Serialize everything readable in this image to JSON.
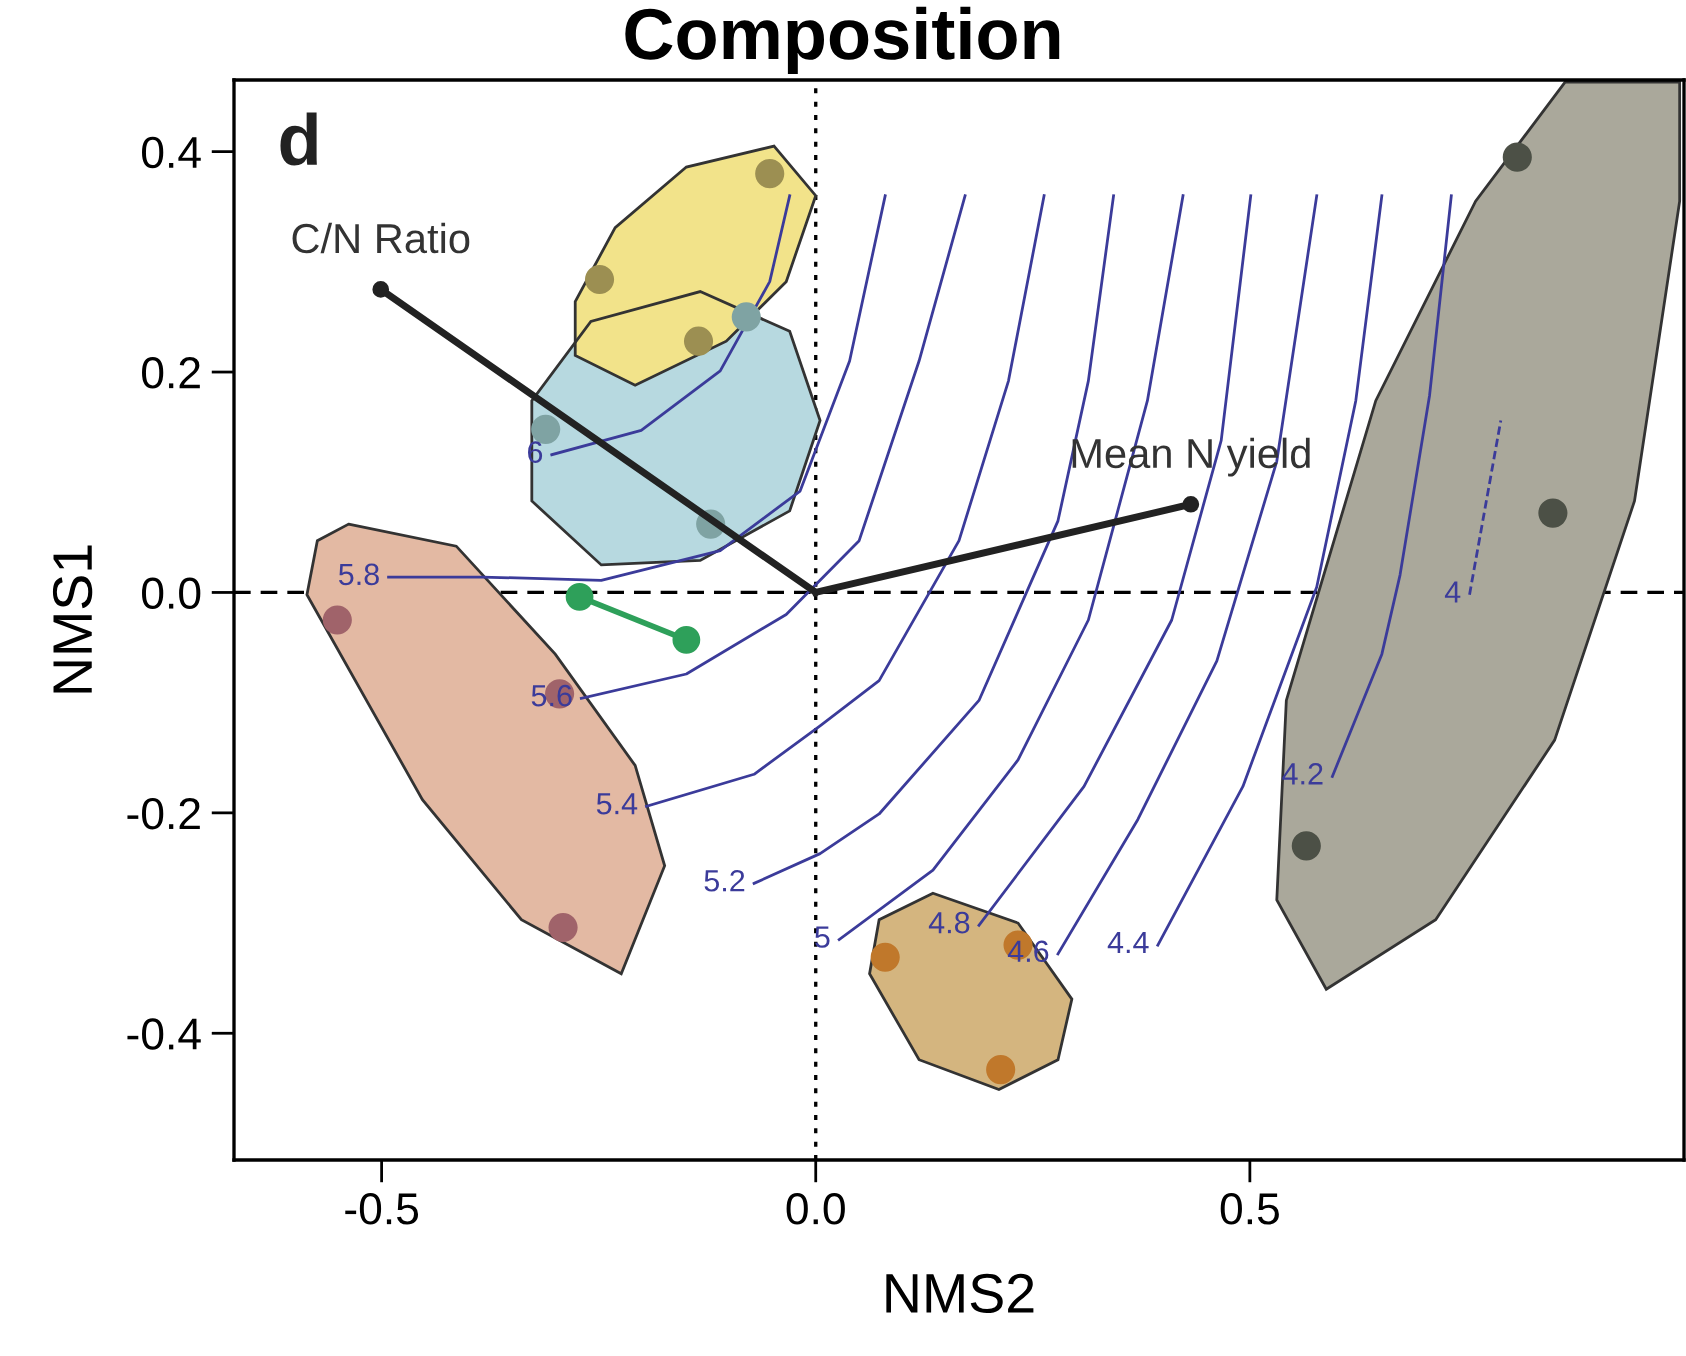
{
  "chart_data": {
    "type": "scatter",
    "title": "Composition",
    "xlabel": "NMS2",
    "ylabel": "NMS1",
    "xlim": [
      -0.67,
      1.0
    ],
    "ylim": [
      -0.515,
      0.465
    ],
    "xticks": [
      {
        "value": -0.5,
        "label": "-0.5"
      },
      {
        "value": 0.0,
        "label": "0.0"
      },
      {
        "value": 0.5,
        "label": "0.5"
      }
    ],
    "yticks": [
      {
        "value": -0.4,
        "label": "-0.4"
      },
      {
        "value": -0.2,
        "label": "-0.2"
      },
      {
        "value": 0.0,
        "label": "0.0"
      },
      {
        "value": 0.2,
        "label": "0.2"
      },
      {
        "value": 0.4,
        "label": "0.4"
      }
    ],
    "grid": false,
    "ref_lines": [
      {
        "axis": "x",
        "value": 0.0,
        "label": null,
        "color": "#000000",
        "line_style": "dotted"
      },
      {
        "axis": "y",
        "value": 0.0,
        "label": null,
        "color": "#000000",
        "line_style": "dashed"
      }
    ],
    "series": [
      {
        "type": "area",
        "color": "#b7d9e0",
        "x": [
          -0.133,
          -0.03,
          0.005,
          -0.03,
          -0.133,
          -0.247,
          -0.327,
          -0.327,
          -0.259,
          -0.133
        ],
        "values": [
          0.273,
          0.237,
          0.156,
          0.074,
          0.029,
          0.025,
          0.083,
          0.174,
          0.246,
          0.273
        ]
      },
      {
        "type": "area",
        "color": "#f2e38a",
        "x": [
          -0.048,
          0.0,
          -0.034,
          -0.103,
          -0.208,
          -0.277,
          -0.277,
          -0.231,
          -0.149,
          -0.048
        ],
        "values": [
          0.405,
          0.36,
          0.282,
          0.228,
          0.188,
          0.215,
          0.264,
          0.331,
          0.386,
          0.405
        ]
      },
      {
        "type": "area",
        "color": "#e3b9a3",
        "x": [
          -0.538,
          -0.414,
          -0.3,
          -0.208,
          -0.174,
          -0.224,
          -0.339,
          -0.453,
          -0.586,
          -0.574,
          -0.538
        ],
        "values": [
          0.062,
          0.042,
          -0.056,
          -0.157,
          -0.248,
          -0.346,
          -0.297,
          -0.188,
          -0.002,
          0.047,
          0.062
        ]
      },
      {
        "type": "area",
        "color": "#d4b57f",
        "x": [
          0.135,
          0.233,
          0.295,
          0.279,
          0.211,
          0.119,
          0.062,
          0.073,
          0.135
        ],
        "values": [
          -0.273,
          -0.3,
          -0.369,
          -0.424,
          -0.451,
          -0.424,
          -0.346,
          -0.297,
          -0.273
        ]
      },
      {
        "type": "area",
        "color": "#aaa89b",
        "x": [
          0.863,
          0.995,
          0.995,
          0.943,
          0.851,
          0.714,
          0.588,
          0.531,
          0.542,
          0.645,
          0.76,
          0.863
        ],
        "values": [
          0.463,
          0.463,
          0.355,
          0.083,
          -0.134,
          -0.297,
          -0.36,
          -0.279,
          -0.098,
          0.174,
          0.355,
          0.463
        ]
      },
      {
        "type": "line",
        "name": "6",
        "color": "#3b3b9a",
        "x": [
          -0.304,
          -0.201,
          -0.11,
          -0.053,
          -0.03
        ],
        "values": [
          0.125,
          0.147,
          0.201,
          0.282,
          0.36
        ]
      },
      {
        "type": "line",
        "name": "5.8",
        "color": "#3b3b9a",
        "x": [
          -0.492,
          -0.384,
          -0.247,
          -0.11,
          -0.018,
          0.039,
          0.08
        ],
        "values": [
          0.014,
          0.014,
          0.011,
          0.038,
          0.092,
          0.21,
          0.36
        ]
      },
      {
        "type": "line",
        "name": "5.6",
        "color": "#3b3b9a",
        "x": [
          -0.27,
          -0.149,
          -0.034,
          0.05,
          0.119,
          0.172
        ],
        "values": [
          -0.096,
          -0.074,
          -0.02,
          0.047,
          0.21,
          0.36
        ]
      },
      {
        "type": "line",
        "name": "5.4",
        "color": "#3b3b9a",
        "x": [
          -0.195,
          -0.071,
          0.005,
          0.073,
          0.165,
          0.222,
          0.263
        ],
        "values": [
          -0.194,
          -0.165,
          -0.121,
          -0.08,
          0.047,
          0.192,
          0.36
        ]
      },
      {
        "type": "line",
        "name": "5.2",
        "color": "#3b3b9a",
        "x": [
          -0.071,
          0.005,
          0.073,
          0.188,
          0.279,
          0.314,
          0.343
        ],
        "values": [
          -0.264,
          -0.237,
          -0.201,
          -0.098,
          0.065,
          0.192,
          0.36
        ]
      },
      {
        "type": "line",
        "name": "5",
        "color": "#3b3b9a",
        "x": [
          0.027,
          0.135,
          0.233,
          0.314,
          0.382,
          0.423
        ],
        "values": [
          -0.315,
          -0.252,
          -0.152,
          -0.025,
          0.174,
          0.36
        ]
      },
      {
        "type": "line",
        "name": "4.8",
        "color": "#3b3b9a",
        "x": [
          0.188,
          0.309,
          0.41,
          0.467,
          0.501
        ],
        "values": [
          -0.302,
          -0.176,
          -0.025,
          0.138,
          0.36
        ]
      },
      {
        "type": "line",
        "name": "4.6",
        "color": "#3b3b9a",
        "x": [
          0.279,
          0.371,
          0.462,
          0.531,
          0.577
        ],
        "values": [
          -0.328,
          -0.206,
          -0.062,
          0.119,
          0.36
        ]
      },
      {
        "type": "line",
        "name": "4.4",
        "color": "#3b3b9a",
        "x": [
          0.394,
          0.492,
          0.577,
          0.622,
          0.652
        ],
        "values": [
          -0.32,
          -0.176,
          0.005,
          0.174,
          0.36
        ]
      },
      {
        "type": "line",
        "name": "4.2",
        "color": "#3b3b9a",
        "x": [
          0.595,
          0.652,
          0.673,
          0.707,
          0.732
        ],
        "values": [
          -0.167,
          -0.056,
          0.016,
          0.179,
          0.36
        ]
      },
      {
        "type": "line",
        "name": "4",
        "color": "#3b3b9a",
        "line_style": "dashed",
        "x": [
          0.753,
          0.789
        ],
        "values": [
          -0.002,
          0.156
        ]
      },
      {
        "color": "#9c8f52",
        "x": [
          -0.053,
          -0.249,
          -0.135
        ],
        "values": [
          0.38,
          0.284,
          0.228
        ]
      },
      {
        "color": "#7fa3a3",
        "x": [
          -0.08,
          -0.311,
          -0.121
        ],
        "values": [
          0.25,
          0.148,
          0.062
        ]
      },
      {
        "color": "#a0636a",
        "x": [
          -0.551,
          -0.295,
          -0.291
        ],
        "values": [
          -0.025,
          -0.092,
          -0.304
        ]
      },
      {
        "color": "#c0782b",
        "x": [
          0.08,
          0.233,
          0.213
        ],
        "values": [
          -0.331,
          -0.32,
          -0.433
        ]
      },
      {
        "color": "#4c5046",
        "x": [
          0.808,
          0.849,
          0.565
        ],
        "values": [
          0.395,
          0.072,
          -0.23
        ]
      },
      {
        "type": "line",
        "color": "#2ea05a",
        "marker": "circle",
        "x": [
          -0.272,
          -0.149
        ],
        "values": [
          -0.004,
          -0.043
        ]
      },
      {
        "type": "line",
        "name": "C/N Ratio",
        "color": "#222222",
        "x": [
          0.0,
          -0.501
        ],
        "values": [
          0.0,
          0.275
        ]
      },
      {
        "type": "line",
        "name": "Mean N yield",
        "color": "#222222",
        "x": [
          0.0,
          0.432
        ],
        "values": [
          0.0,
          0.08
        ]
      }
    ],
    "annotations": [
      "d"
    ]
  }
}
